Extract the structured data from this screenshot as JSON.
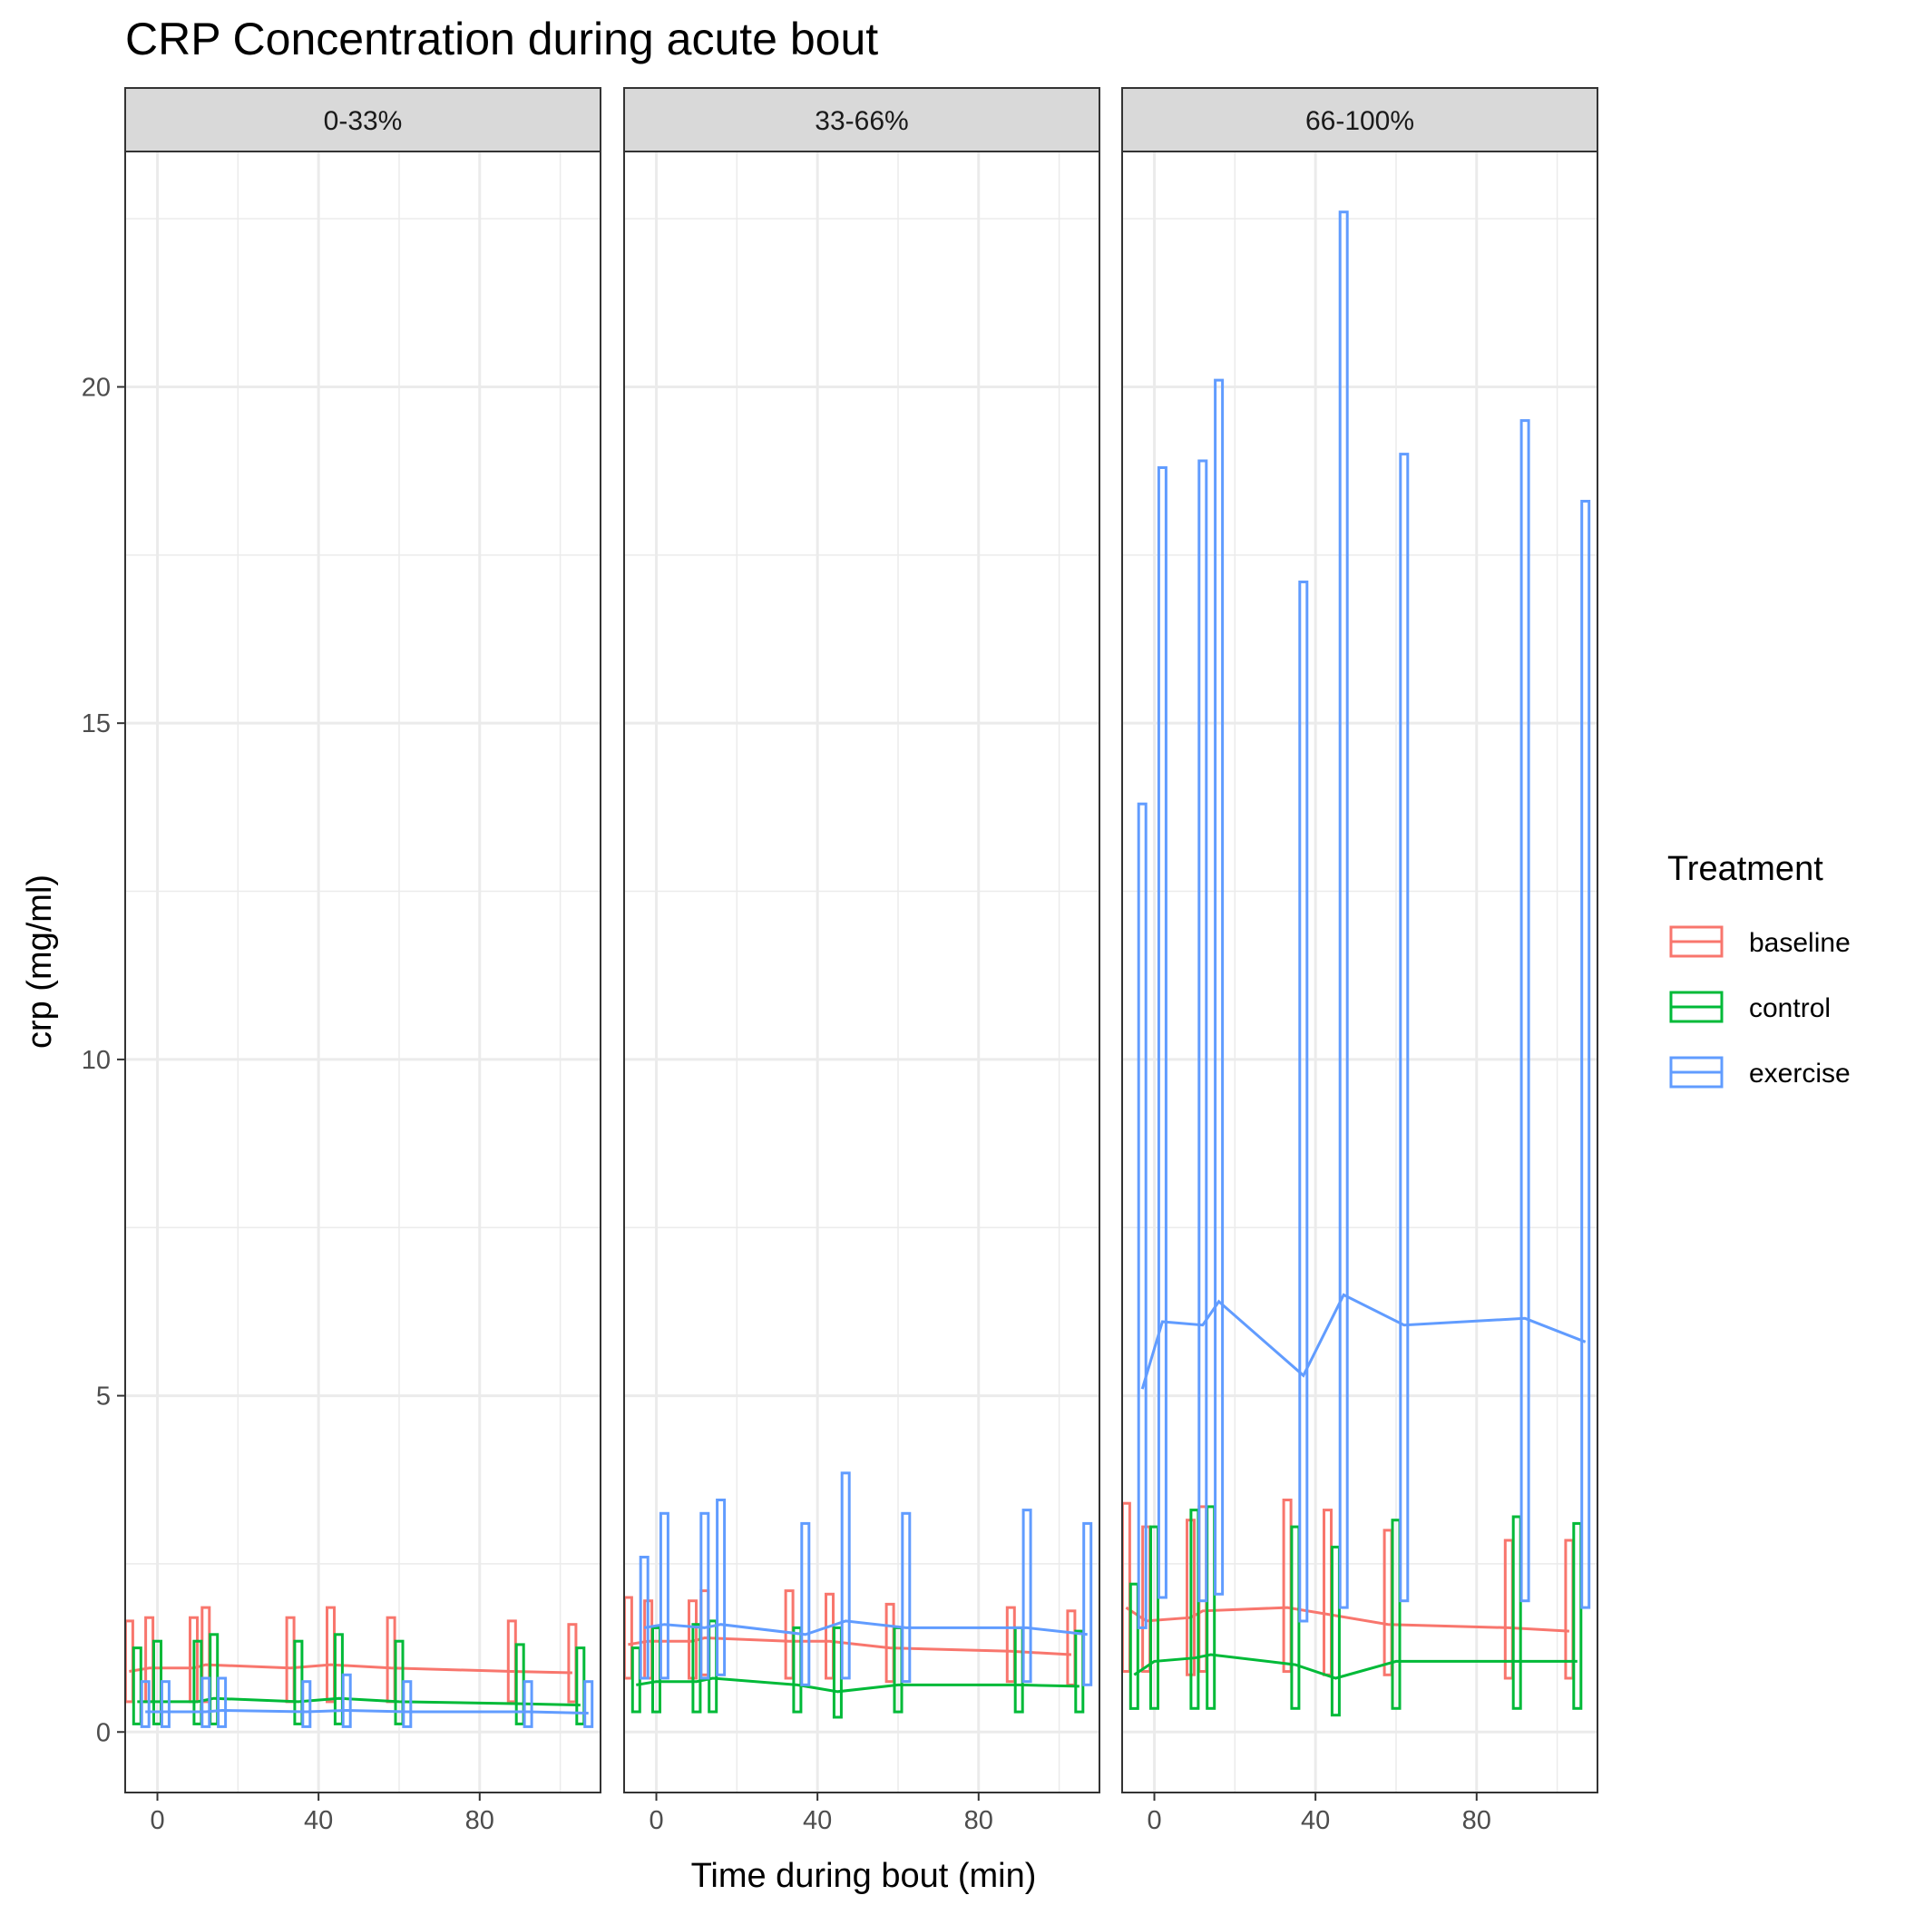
{
  "chart_data": {
    "type": "line",
    "title": "CRP Concentration during acute bout",
    "xlabel": "Time during bout (min)",
    "ylabel": "crp (mg/ml)",
    "xlim": [
      -8,
      110
    ],
    "ylim": [
      -0.9,
      23.5
    ],
    "x_ticks": [
      0,
      40,
      80
    ],
    "y_ticks": [
      0,
      5,
      10,
      15,
      20
    ],
    "grid": true,
    "legend": {
      "title": "Treatment",
      "position": "right"
    },
    "panels": [
      {
        "label": "0-33%",
        "series": [
          {
            "name": "baseline",
            "color": "#F8766D",
            "x": [
              -7,
              -2,
              9,
              12,
              33,
              43,
              58,
              88,
              103
            ],
            "y": [
              0.9,
              0.95,
              0.95,
              1.0,
              0.95,
              1.0,
              0.95,
              0.9,
              0.88
            ],
            "err_low": [
              0.45,
              0.45,
              0.45,
              0.45,
              0.45,
              0.45,
              0.45,
              0.45,
              0.45
            ],
            "err_high": [
              1.65,
              1.7,
              1.7,
              1.85,
              1.7,
              1.85,
              1.7,
              1.65,
              1.6
            ]
          },
          {
            "name": "control",
            "color": "#00BA38",
            "x": [
              -5,
              0,
              10,
              14,
              35,
              45,
              60,
              90,
              105
            ],
            "y": [
              0.45,
              0.45,
              0.45,
              0.5,
              0.45,
              0.5,
              0.45,
              0.42,
              0.4
            ],
            "err_low": [
              0.12,
              0.12,
              0.12,
              0.12,
              0.12,
              0.12,
              0.12,
              0.12,
              0.12
            ],
            "err_high": [
              1.25,
              1.35,
              1.35,
              1.45,
              1.35,
              1.45,
              1.35,
              1.3,
              1.25
            ]
          },
          {
            "name": "exercise",
            "color": "#619CFF",
            "x": [
              -3,
              2,
              12,
              16,
              37,
              47,
              62,
              92,
              107
            ],
            "y": [
              0.3,
              0.3,
              0.3,
              0.32,
              0.3,
              0.32,
              0.3,
              0.3,
              0.28
            ],
            "err_low": [
              0.08,
              0.08,
              0.08,
              0.08,
              0.08,
              0.08,
              0.08,
              0.08,
              0.08
            ],
            "err_high": [
              0.75,
              0.75,
              0.8,
              0.8,
              0.75,
              0.85,
              0.75,
              0.75,
              0.75
            ]
          }
        ]
      },
      {
        "label": "33-66%",
        "series": [
          {
            "name": "baseline",
            "color": "#F8766D",
            "x": [
              -7,
              -2,
              9,
              12,
              33,
              43,
              58,
              88,
              103
            ],
            "y": [
              1.3,
              1.35,
              1.35,
              1.4,
              1.35,
              1.35,
              1.25,
              1.2,
              1.15
            ],
            "err_low": [
              0.8,
              0.8,
              0.8,
              0.85,
              0.8,
              0.8,
              0.75,
              0.75,
              0.7
            ],
            "err_high": [
              2.0,
              1.95,
              1.95,
              2.1,
              2.1,
              2.05,
              1.9,
              1.85,
              1.8
            ]
          },
          {
            "name": "control",
            "color": "#00BA38",
            "x": [
              -5,
              0,
              10,
              14,
              35,
              45,
              60,
              90,
              105
            ],
            "y": [
              0.7,
              0.75,
              0.75,
              0.8,
              0.7,
              0.6,
              0.7,
              0.7,
              0.68
            ],
            "err_low": [
              0.3,
              0.3,
              0.3,
              0.3,
              0.3,
              0.22,
              0.3,
              0.3,
              0.3
            ],
            "err_high": [
              1.25,
              1.55,
              1.6,
              1.65,
              1.55,
              1.55,
              1.55,
              1.55,
              1.5
            ]
          },
          {
            "name": "exercise",
            "color": "#619CFF",
            "x": [
              -3,
              2,
              12,
              16,
              37,
              47,
              62,
              92,
              107
            ],
            "y": [
              1.55,
              1.6,
              1.55,
              1.6,
              1.45,
              1.65,
              1.55,
              1.55,
              1.45
            ],
            "err_low": [
              0.8,
              0.8,
              0.8,
              0.85,
              0.7,
              0.8,
              0.75,
              0.75,
              0.7
            ],
            "err_high": [
              2.6,
              3.25,
              3.25,
              3.45,
              3.1,
              3.85,
              3.25,
              3.3,
              3.1
            ]
          }
        ]
      },
      {
        "label": "66-100%",
        "series": [
          {
            "name": "baseline",
            "color": "#F8766D",
            "x": [
              -7,
              -2,
              9,
              12,
              33,
              43,
              58,
              88,
              103
            ],
            "y": [
              1.85,
              1.65,
              1.7,
              1.8,
              1.85,
              1.75,
              1.6,
              1.55,
              1.5
            ],
            "err_low": [
              0.9,
              0.9,
              0.85,
              0.9,
              0.9,
              0.85,
              0.85,
              0.8,
              0.8
            ],
            "err_high": [
              3.4,
              3.05,
              3.15,
              3.35,
              3.45,
              3.3,
              3.0,
              2.85,
              2.85
            ]
          },
          {
            "name": "control",
            "color": "#00BA38",
            "x": [
              -5,
              0,
              10,
              14,
              35,
              45,
              60,
              90,
              105
            ],
            "y": [
              0.85,
              1.05,
              1.1,
              1.15,
              1.0,
              0.8,
              1.05,
              1.05,
              1.05
            ],
            "err_low": [
              0.35,
              0.35,
              0.35,
              0.35,
              0.35,
              0.25,
              0.35,
              0.35,
              0.35
            ],
            "err_high": [
              2.2,
              3.05,
              3.3,
              3.35,
              3.05,
              2.75,
              3.15,
              3.2,
              3.1
            ]
          },
          {
            "name": "exercise",
            "color": "#619CFF",
            "x": [
              -3,
              2,
              12,
              16,
              37,
              47,
              62,
              92,
              107
            ],
            "y": [
              5.1,
              6.1,
              6.05,
              6.4,
              5.3,
              6.5,
              6.05,
              6.15,
              5.8
            ],
            "err_low": [
              1.55,
              2.0,
              1.95,
              2.05,
              1.65,
              1.85,
              1.95,
              1.95,
              1.85
            ],
            "err_high": [
              13.8,
              18.8,
              18.9,
              20.1,
              17.1,
              22.6,
              19.0,
              19.5,
              18.3
            ]
          }
        ]
      }
    ]
  }
}
